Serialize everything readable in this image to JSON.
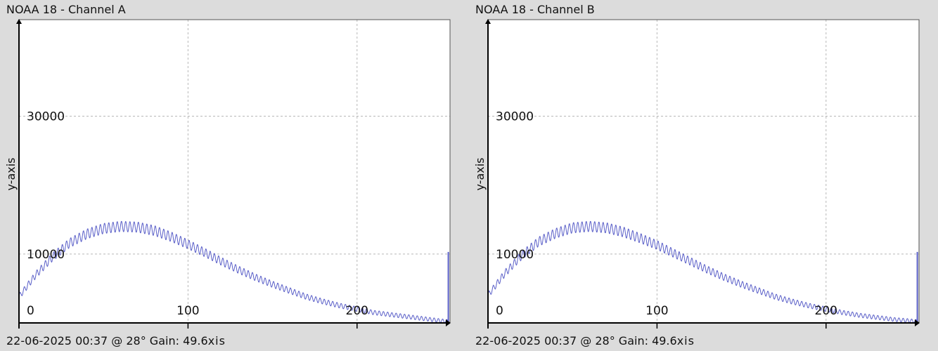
{
  "chart_data": [
    {
      "type": "line",
      "title": "NOAA 18 - Channel A",
      "footer": "22-06-2025 00:37 @ 28° Gain: 49.6",
      "footer_suffix": "xis",
      "xlabel": "",
      "ylabel": "y-axis",
      "xlim": [
        0,
        255
      ],
      "ylim": [
        0,
        44000
      ],
      "x_ticks": [
        0,
        100,
        200
      ],
      "y_ticks": [
        10000,
        30000
      ],
      "x_tick_labels": [
        "0",
        "100",
        "200"
      ],
      "y_tick_labels": [
        "10000",
        "30000"
      ],
      "grid": true,
      "series": [
        {
          "color": "#5a5fc8",
          "x": [
            0,
            10,
            20,
            30,
            40,
            50,
            60,
            70,
            80,
            90,
            100,
            110,
            120,
            130,
            140,
            150,
            160,
            170,
            180,
            190,
            200,
            210,
            220,
            230,
            240,
            250,
            254
          ],
          "y": [
            3800,
            7000,
            9600,
            11600,
            12900,
            13700,
            14000,
            13900,
            13400,
            12500,
            11400,
            10200,
            8900,
            7700,
            6600,
            5600,
            4700,
            3800,
            3100,
            2500,
            2000,
            1500,
            1200,
            900,
            600,
            300,
            200
          ],
          "end_spike": 10300
        }
      ]
    },
    {
      "type": "line",
      "title": "NOAA 18 - Channel B",
      "footer": "22-06-2025 00:37 @ 28° Gain: 49.6",
      "footer_suffix": "xis",
      "xlabel": "",
      "ylabel": "y-axis",
      "xlim": [
        0,
        255
      ],
      "ylim": [
        0,
        44000
      ],
      "x_ticks": [
        0,
        100,
        200
      ],
      "y_ticks": [
        10000,
        30000
      ],
      "x_tick_labels": [
        "0",
        "100",
        "200"
      ],
      "y_tick_labels": [
        "10000",
        "30000"
      ],
      "grid": true,
      "series": [
        {
          "color": "#5a5fc8",
          "x": [
            0,
            10,
            20,
            30,
            40,
            50,
            60,
            70,
            80,
            90,
            100,
            110,
            120,
            130,
            140,
            150,
            160,
            170,
            180,
            190,
            200,
            210,
            220,
            230,
            240,
            250,
            254
          ],
          "y": [
            4000,
            7200,
            9800,
            11800,
            13000,
            13800,
            14000,
            13800,
            13200,
            12300,
            11300,
            10100,
            8900,
            7700,
            6600,
            5600,
            4700,
            3800,
            3100,
            2500,
            2000,
            1500,
            1100,
            800,
            500,
            300,
            200
          ],
          "end_spike": 10300
        }
      ]
    }
  ]
}
